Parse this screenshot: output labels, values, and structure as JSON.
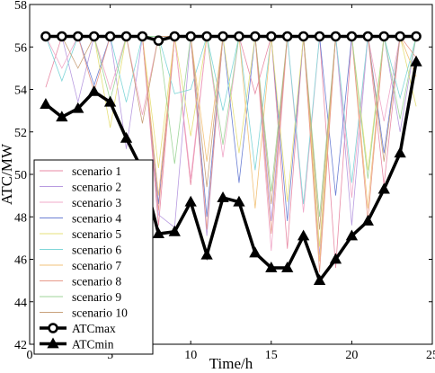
{
  "chart_data": {
    "type": "line",
    "xlabel": "Time/h",
    "ylabel": "ATC/MW",
    "xlim": [
      0,
      25
    ],
    "ylim": [
      42,
      58
    ],
    "xticks": [
      0,
      5,
      10,
      15,
      20,
      25
    ],
    "yticks": [
      42,
      44,
      46,
      48,
      50,
      52,
      54,
      56,
      58
    ],
    "grid": false,
    "legend_position": "lower-left",
    "x": [
      1,
      2,
      3,
      4,
      5,
      6,
      7,
      8,
      9,
      10,
      11,
      12,
      13,
      14,
      15,
      16,
      17,
      18,
      19,
      20,
      21,
      22,
      23,
      24
    ],
    "series": [
      {
        "name": "scenario 1",
        "color": "#e88aa5",
        "values": [
          54.1,
          56.5,
          56.5,
          56.5,
          56.5,
          56.5,
          56.5,
          47.6,
          56.5,
          49.5,
          56.5,
          56.5,
          56.5,
          53.8,
          56.5,
          46.5,
          56.5,
          56.5,
          45.6,
          56.5,
          56.5,
          49.5,
          56.5,
          56.5
        ]
      },
      {
        "name": "scenario 2",
        "color": "#b89be0",
        "values": [
          56.5,
          56.5,
          53.4,
          56.5,
          56.5,
          51.2,
          56.5,
          48.1,
          47.5,
          56.5,
          47.1,
          56.5,
          56.5,
          56.5,
          47.8,
          56.5,
          56.5,
          46.2,
          56.5,
          47.6,
          56.5,
          56.5,
          52.0,
          56.5
        ]
      },
      {
        "name": "scenario 3",
        "color": "#f0a8c8",
        "values": [
          56.5,
          55.0,
          56.5,
          56.5,
          54.0,
          56.5,
          52.8,
          56.5,
          56.5,
          49.8,
          56.5,
          50.8,
          56.5,
          56.5,
          46.4,
          56.5,
          48.2,
          56.5,
          56.5,
          48.9,
          56.5,
          52.5,
          56.5,
          56.5
        ]
      },
      {
        "name": "scenario 4",
        "color": "#6b7fd4",
        "values": [
          56.5,
          56.5,
          56.5,
          54.2,
          56.5,
          56.5,
          56.5,
          48.6,
          56.5,
          56.5,
          48.0,
          56.5,
          49.6,
          56.5,
          56.5,
          47.8,
          56.5,
          56.5,
          49.0,
          56.5,
          56.5,
          51.0,
          56.5,
          56.5
        ]
      },
      {
        "name": "scenario 5",
        "color": "#e6e07a",
        "values": [
          56.5,
          56.5,
          56.5,
          56.5,
          52.2,
          56.5,
          56.5,
          50.3,
          56.5,
          51.8,
          56.5,
          56.5,
          51.0,
          56.5,
          56.5,
          48.7,
          56.5,
          46.6,
          56.5,
          56.5,
          50.2,
          56.5,
          56.5,
          53.2
        ]
      },
      {
        "name": "scenario 6",
        "color": "#7fd6d8",
        "values": [
          56.5,
          54.4,
          56.5,
          56.5,
          56.5,
          53.4,
          56.5,
          56.5,
          53.8,
          54.0,
          56.5,
          53.0,
          56.5,
          50.2,
          56.5,
          56.5,
          48.6,
          56.5,
          56.5,
          49.6,
          56.5,
          56.5,
          53.6,
          56.5
        ]
      },
      {
        "name": "scenario 7",
        "color": "#f2c27a",
        "values": [
          56.5,
          56.5,
          56.5,
          56.5,
          56.5,
          56.5,
          56.5,
          49.0,
          56.5,
          56.5,
          50.6,
          56.5,
          56.5,
          48.4,
          56.5,
          56.5,
          56.5,
          45.9,
          56.5,
          56.5,
          48.4,
          56.5,
          56.5,
          54.6
        ]
      },
      {
        "name": "scenario 8",
        "color": "#e89a8a",
        "values": [
          56.5,
          56.5,
          56.5,
          53.9,
          56.5,
          56.5,
          56.5,
          48.3,
          56.5,
          56.5,
          47.4,
          56.5,
          56.5,
          56.5,
          47.2,
          56.5,
          56.5,
          45.4,
          56.5,
          56.5,
          47.8,
          56.5,
          56.5,
          55.5
        ]
      },
      {
        "name": "scenario 9",
        "color": "#9fd69a",
        "values": [
          56.5,
          56.5,
          56.5,
          56.5,
          53.5,
          56.5,
          56.5,
          56.5,
          50.5,
          56.5,
          56.5,
          51.4,
          56.5,
          56.5,
          49.2,
          56.5,
          56.5,
          48.0,
          56.5,
          56.5,
          49.8,
          56.5,
          52.6,
          56.5
        ]
      },
      {
        "name": "scenario 10",
        "color": "#c9a27c",
        "values": [
          56.5,
          56.5,
          55.0,
          56.5,
          56.5,
          56.5,
          52.4,
          56.5,
          56.5,
          56.5,
          49.4,
          56.5,
          56.5,
          56.5,
          48.6,
          56.5,
          56.5,
          47.4,
          56.5,
          56.5,
          56.5,
          50.6,
          56.5,
          56.5
        ]
      },
      {
        "name": "ATCmax",
        "color": "#000000",
        "marker": "circle",
        "values": [
          56.5,
          56.5,
          56.5,
          56.5,
          56.5,
          56.5,
          56.5,
          56.3,
          56.5,
          56.5,
          56.5,
          56.5,
          56.5,
          56.5,
          56.5,
          56.5,
          56.5,
          56.5,
          56.5,
          56.5,
          56.5,
          56.5,
          56.5,
          56.5
        ]
      },
      {
        "name": "ATCmin",
        "color": "#000000",
        "marker": "triangle",
        "values": [
          53.3,
          52.7,
          53.1,
          53.9,
          53.4,
          51.7,
          50.2,
          47.2,
          47.3,
          48.7,
          46.2,
          48.9,
          48.7,
          46.3,
          45.6,
          45.6,
          47.1,
          45.0,
          46.0,
          47.1,
          47.8,
          49.3,
          51.0,
          55.3
        ]
      }
    ]
  }
}
